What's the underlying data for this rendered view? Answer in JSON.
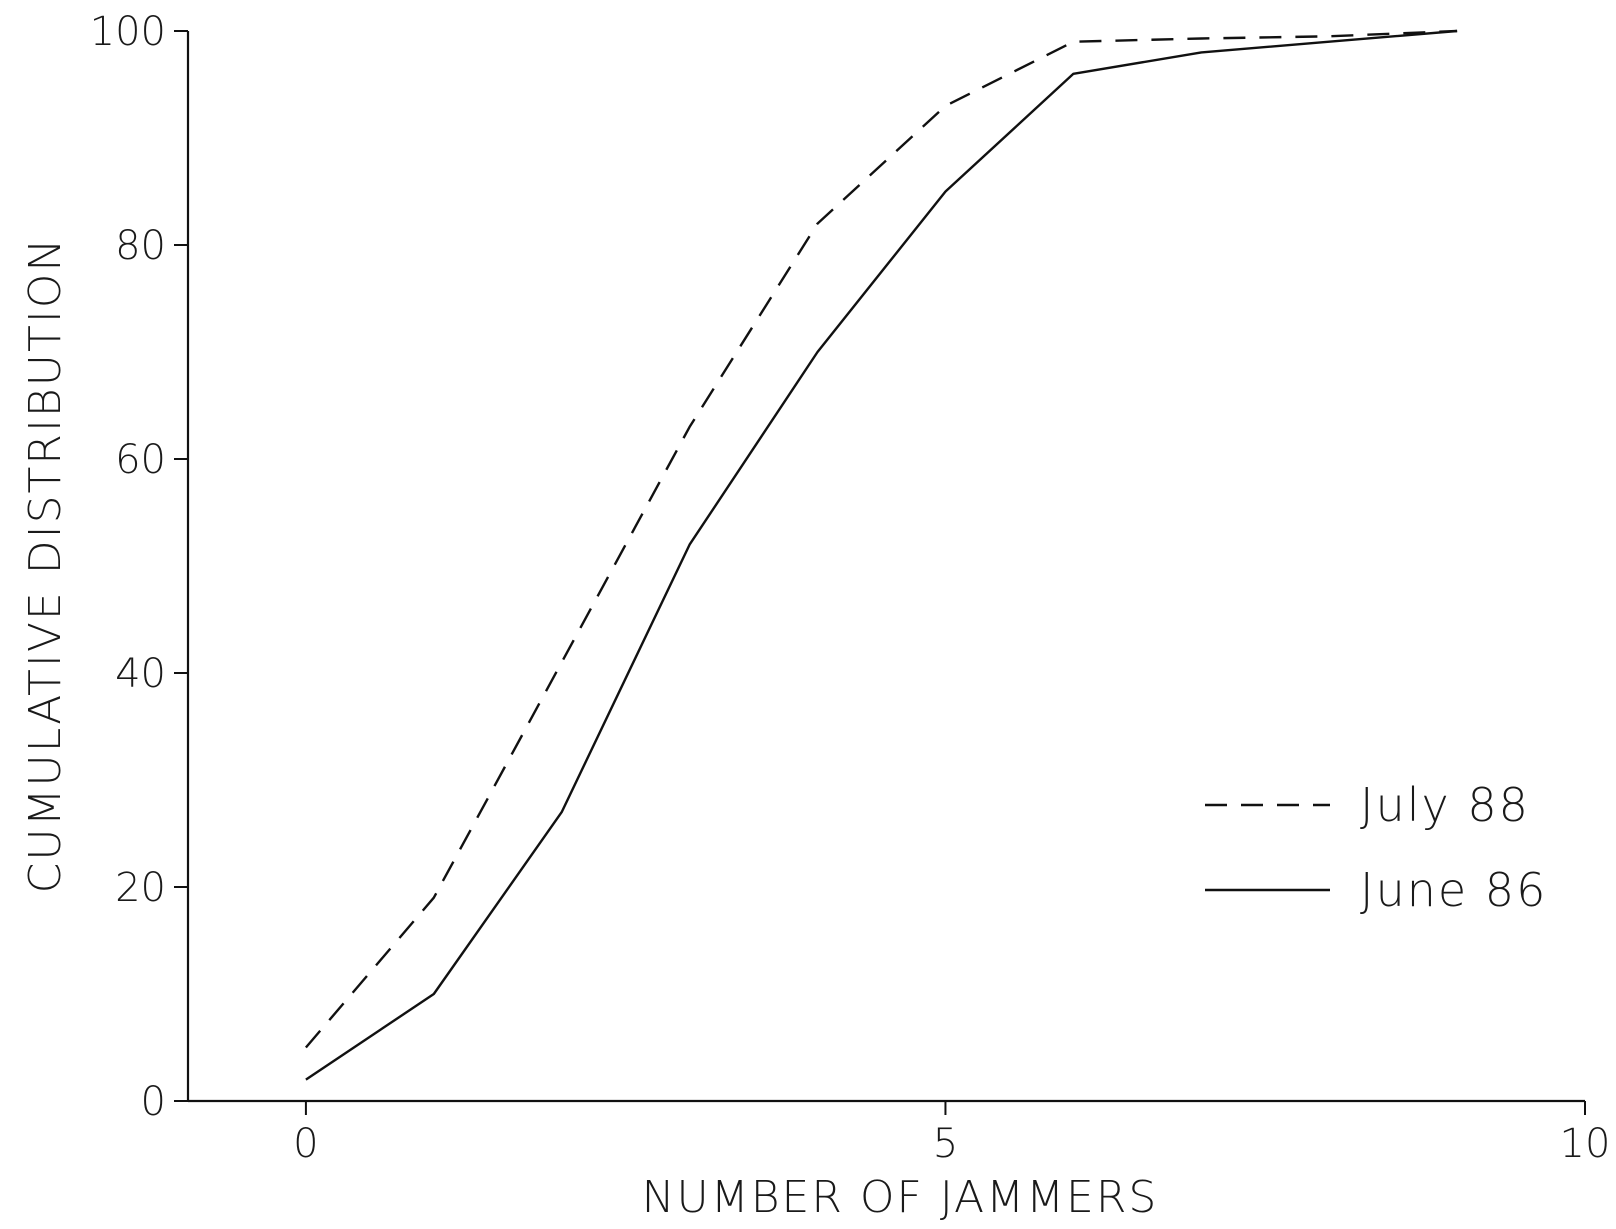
{
  "chart_data": {
    "type": "line",
    "title": "",
    "xlabel": "NUMBER OF JAMMERS",
    "ylabel": "CUMULATIVE DISTRIBUTION",
    "xlim": [
      -1,
      10
    ],
    "ylim": [
      0,
      100
    ],
    "x_ticks": [
      0,
      5,
      10
    ],
    "x_tick_labels": [
      "0",
      "5",
      "10"
    ],
    "y_ticks": [
      0,
      20,
      40,
      60,
      80,
      100
    ],
    "y_tick_labels": [
      "0",
      "20",
      "40",
      "60",
      "80",
      "100"
    ],
    "grid": false,
    "legend_position": "right",
    "series": [
      {
        "name": "July 88",
        "style": "dashed",
        "color": "#111111",
        "x": [
          0,
          1,
          2,
          3,
          4,
          5,
          6,
          7,
          8,
          9
        ],
        "y": [
          5,
          19,
          41,
          63,
          82,
          93,
          99,
          99.3,
          99.5,
          100
        ]
      },
      {
        "name": "June 86",
        "style": "solid",
        "color": "#111111",
        "x": [
          0,
          1,
          2,
          3,
          4,
          5,
          6,
          7,
          8,
          9
        ],
        "y": [
          2,
          10,
          27,
          52,
          70,
          85,
          96,
          98,
          99,
          100
        ]
      }
    ]
  }
}
